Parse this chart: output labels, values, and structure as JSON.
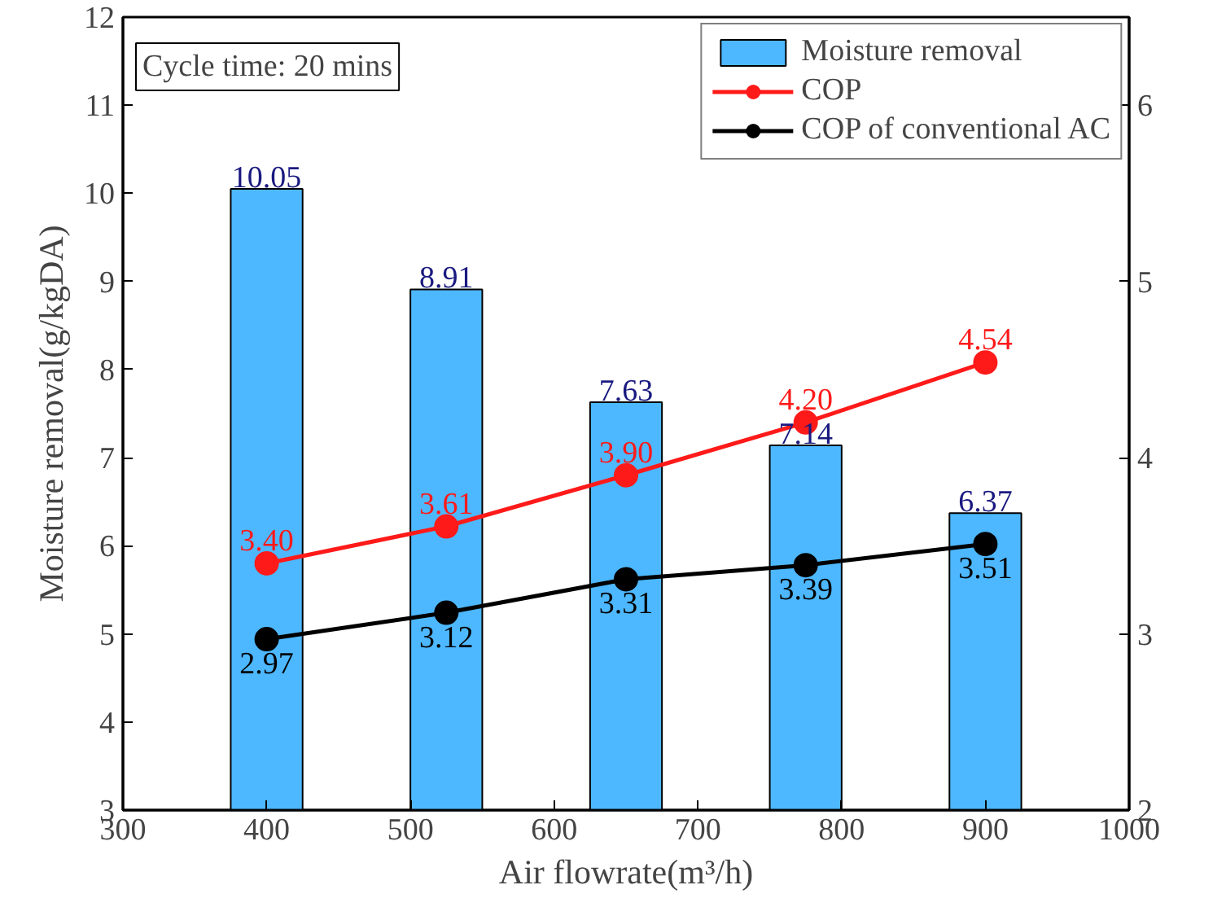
{
  "chart_data": {
    "type": "bar",
    "xlabel": "Air flowrate(m³/h)",
    "ylabel": "Moisture removal(g/kgDA)",
    "xlim": [
      300,
      1000
    ],
    "xticks": [
      300,
      400,
      500,
      600,
      700,
      800,
      900,
      1000
    ],
    "ylim": [
      3,
      12
    ],
    "yticks": [
      3,
      4,
      5,
      6,
      7,
      8,
      9,
      10,
      11,
      12
    ],
    "y2lim": [
      2,
      6.5
    ],
    "y2ticks": [
      2,
      3,
      4,
      5,
      6
    ],
    "series": [
      {
        "name": "Moisture removal",
        "color": "#4db8ff",
        "x": [
          400,
          525,
          650,
          775,
          900
        ],
        "values": [
          10.05,
          8.91,
          7.63,
          7.14,
          6.37
        ],
        "value_labels": [
          "10.05",
          "8.91",
          "7.63",
          "7.14",
          "6.37"
        ]
      },
      {
        "name": "COP",
        "type": "line",
        "axis": "y2",
        "color": "#ff1a1a",
        "x": [
          400,
          525,
          650,
          775,
          900
        ],
        "values": [
          3.4,
          3.61,
          3.9,
          4.2,
          4.54
        ],
        "value_labels": [
          "3.40",
          "3.61",
          "3.90",
          "4.20",
          "4.54"
        ]
      },
      {
        "name": "COP of conventional AC",
        "type": "line",
        "axis": "y2",
        "color": "#000000",
        "x": [
          400,
          525,
          650,
          775,
          900
        ],
        "values": [
          2.97,
          3.12,
          3.31,
          3.39,
          3.51
        ],
        "value_labels": [
          "2.97",
          "3.12",
          "3.31",
          "3.39",
          "3.51"
        ]
      }
    ],
    "annotations": [
      "Cycle time: 20 mins"
    ],
    "marker": "circle",
    "legend": "top right",
    "grid": false
  }
}
